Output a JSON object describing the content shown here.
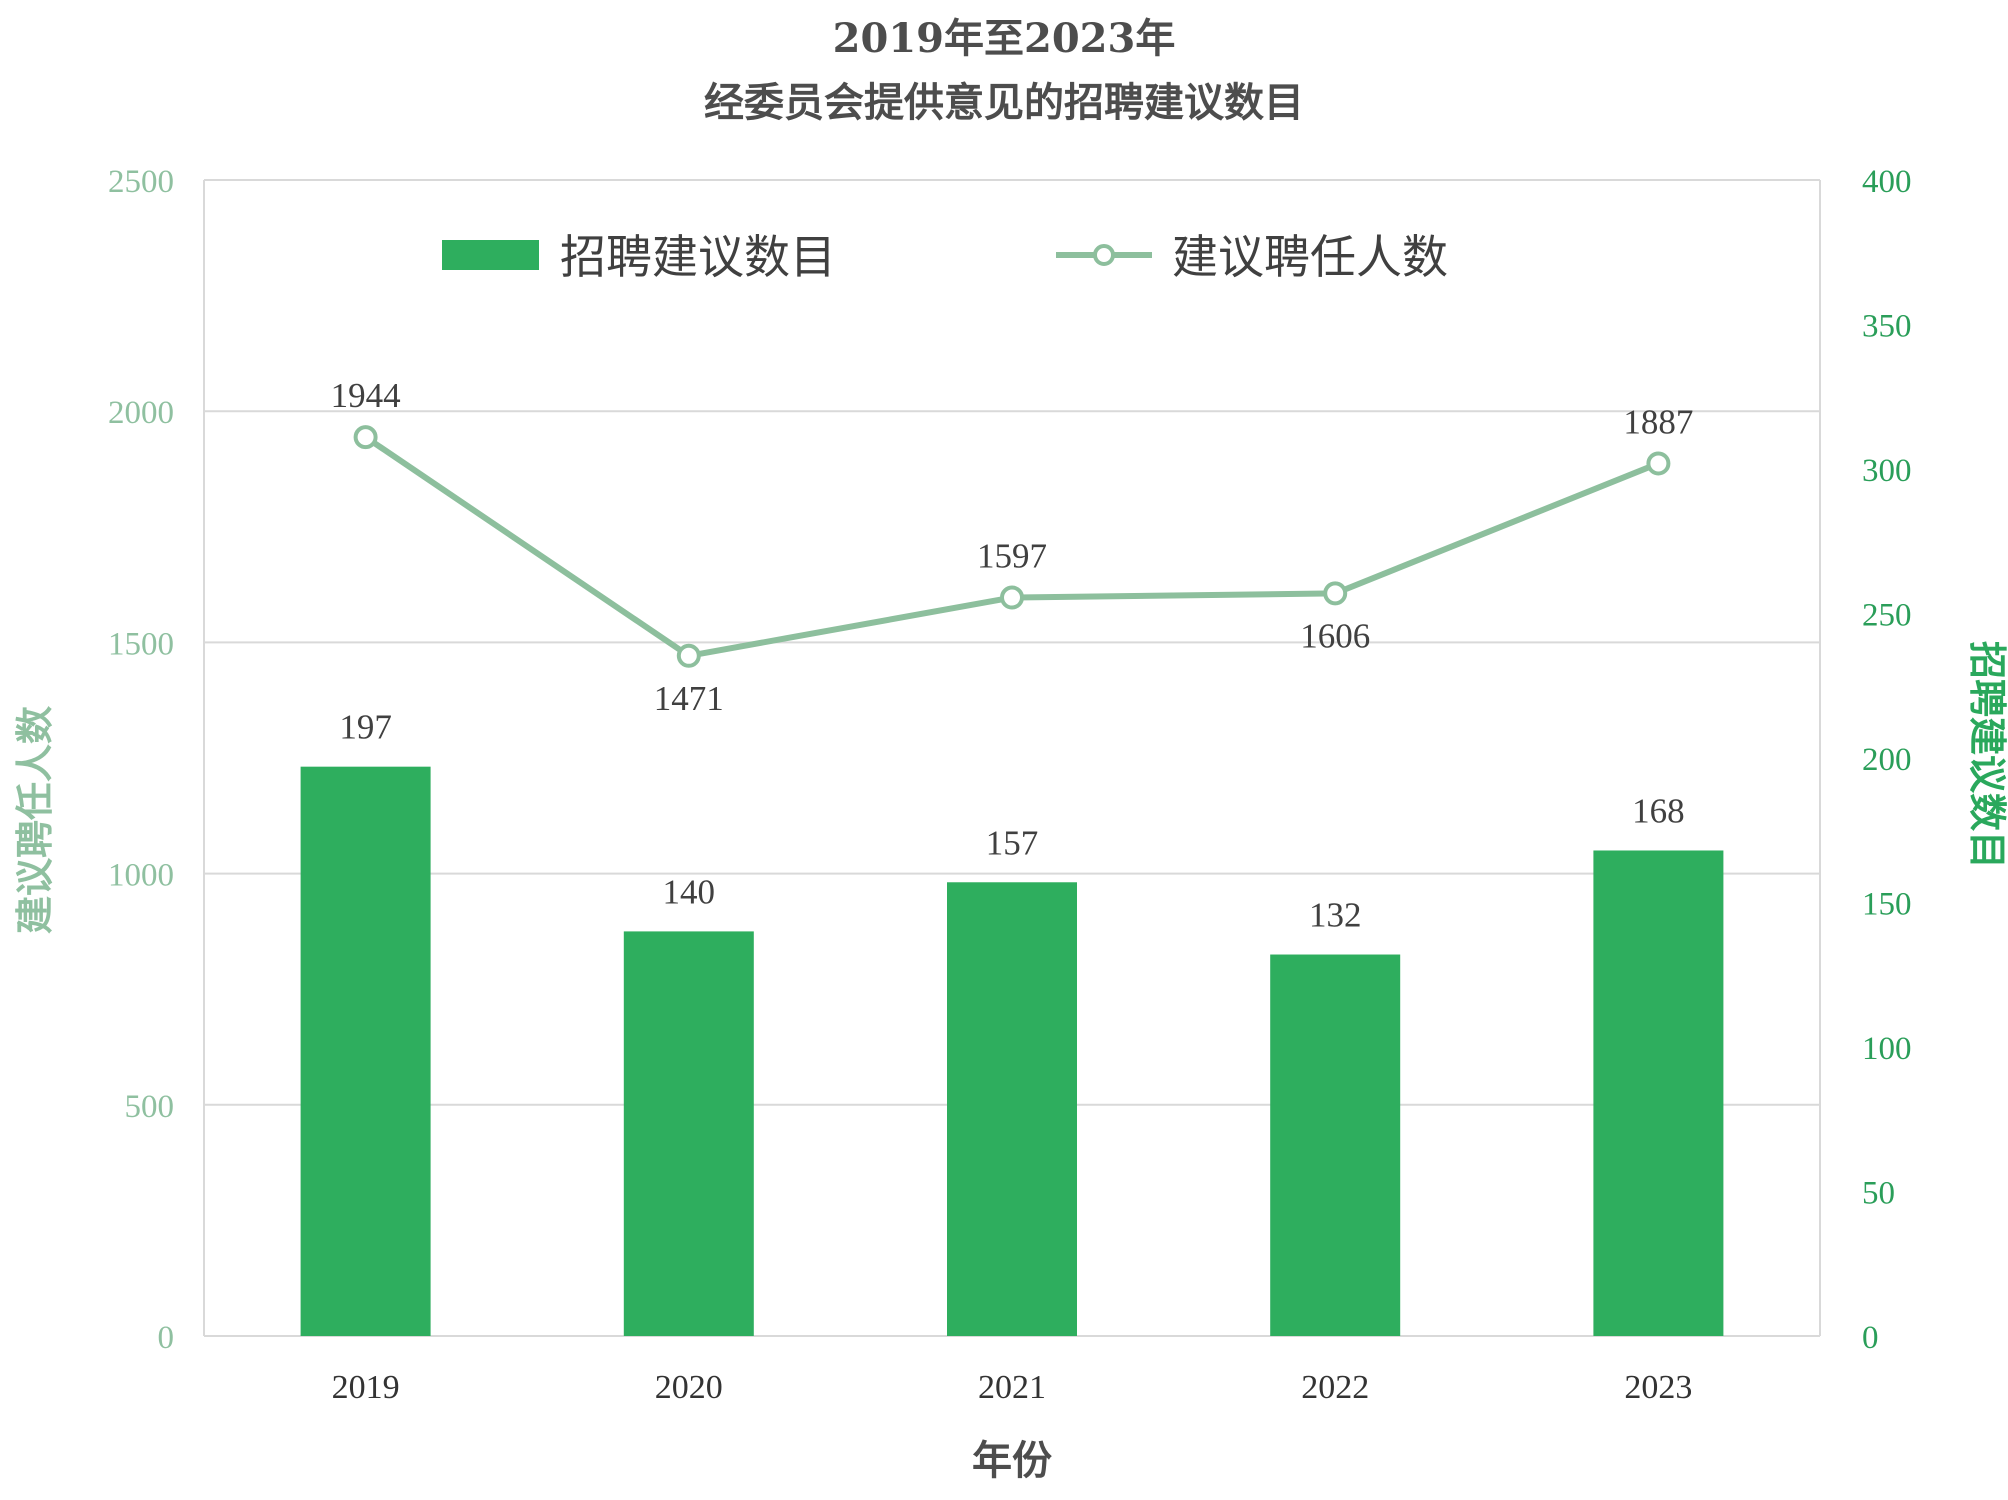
{
  "chart_data": {
    "type": "bar",
    "title_line1": "2019年至2023年",
    "title_line2": "经委员会提供意见的招聘建议数目",
    "xlabel": "年份",
    "ylabel_left": "建议聘任人数",
    "ylabel_right": "招聘建议数目",
    "categories": [
      "2019",
      "2020",
      "2021",
      "2022",
      "2023"
    ],
    "left_axis": {
      "min": 0,
      "max": 2500,
      "ticks": [
        "0",
        "500",
        "1000",
        "1500",
        "2000",
        "2500"
      ]
    },
    "right_axis": {
      "min": 0,
      "max": 400,
      "ticks": [
        "0",
        "50",
        "100",
        "150",
        "200",
        "250",
        "300",
        "350",
        "400"
      ]
    },
    "grid": true,
    "legend_position": "top",
    "series": [
      {
        "name": "招聘建议数目",
        "type": "bar",
        "axis": "right",
        "color": "#2eae5e",
        "values": [
          197,
          140,
          157,
          132,
          168
        ],
        "labels": [
          "197",
          "140",
          "157",
          "132",
          "168"
        ]
      },
      {
        "name": "建议聘任人数",
        "type": "line",
        "axis": "left",
        "color": "#8dbf9d",
        "values": [
          1944,
          1471,
          1597,
          1606,
          1887
        ],
        "labels": [
          "1944",
          "1471",
          "1597",
          "1606",
          "1887"
        ],
        "label_placement": [
          "above",
          "below",
          "above",
          "below",
          "above"
        ]
      }
    ]
  }
}
